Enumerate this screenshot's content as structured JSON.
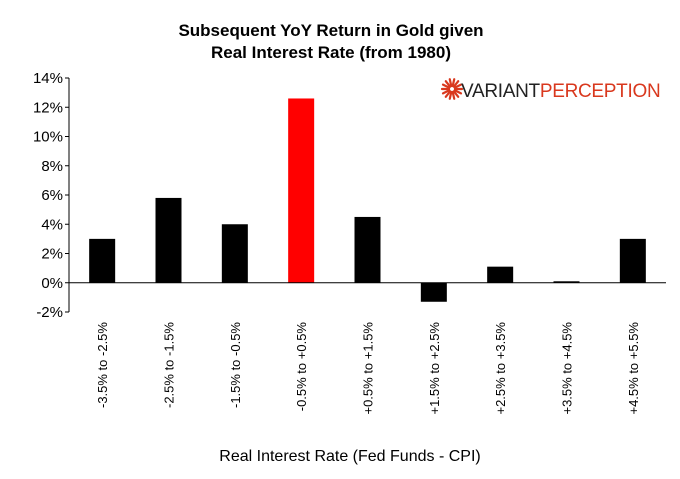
{
  "chart_data": {
    "type": "bar",
    "title": "Subsequent YoY Return in Gold given",
    "subtitle": "Real Interest Rate (from 1980)",
    "xlabel": "Real Interest Rate (Fed Funds - CPI)",
    "ylabel": "",
    "ylim": [
      -2,
      14
    ],
    "yticks": [
      "-2%",
      "0%",
      "2%",
      "4%",
      "6%",
      "8%",
      "10%",
      "12%",
      "14%"
    ],
    "categories": [
      "-3.5% to -2.5%",
      "-2.5% to -1.5%",
      "-1.5% to -0.5%",
      "-0.5% to +0.5%",
      "+0.5% to +1.5%",
      "+1.5% to +2.5%",
      "+2.5% to +3.5%",
      "+3.5% to +4.5%",
      "+4.5% to +5.5%"
    ],
    "values": [
      3.0,
      5.8,
      4.0,
      12.6,
      4.5,
      -1.3,
      1.1,
      0.1,
      3.0
    ],
    "bar_colors": [
      "#000000",
      "#000000",
      "#000000",
      "#ff0000",
      "#000000",
      "#000000",
      "#000000",
      "#000000",
      "#000000"
    ],
    "grid": false,
    "legend": "none"
  },
  "brand": {
    "part1": "VARIANT",
    "part2": "PERCEPTION",
    "color1": "#222222",
    "color2": "#d9381e",
    "icon": "starburst-logo"
  }
}
